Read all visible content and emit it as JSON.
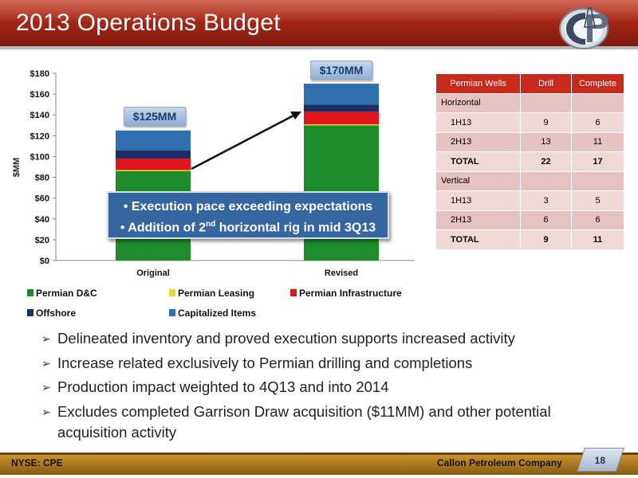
{
  "title": "2013 Operations Budget",
  "chart_data": {
    "type": "bar",
    "stacked": true,
    "categories": [
      "Original",
      "Revised"
    ],
    "ylabel": "$MM",
    "ylim": [
      0,
      180
    ],
    "yticks": [
      "$0",
      "$20",
      "$40",
      "$60",
      "$80",
      "$100",
      "$120",
      "$140",
      "$160",
      "$180"
    ],
    "series": [
      {
        "name": "Permian D&C",
        "color": "#1e8c2a",
        "values": [
          86,
          130
        ]
      },
      {
        "name": "Permian Leasing",
        "color": "#e6d82a",
        "values": [
          1,
          1
        ]
      },
      {
        "name": "Permian Infrastructure",
        "color": "#e0161a",
        "values": [
          11,
          12
        ]
      },
      {
        "name": "Offshore",
        "color": "#1b2f66",
        "values": [
          8,
          7
        ]
      },
      {
        "name": "Capitalized Items",
        "color": "#2e6fb0",
        "values": [
          19,
          20
        ]
      }
    ],
    "totals_labels": [
      "$125MM",
      "$170MM"
    ],
    "legend_position": "bottom",
    "grid": false
  },
  "callout": {
    "line1": "• Execution pace exceeding expectations",
    "line2_pre": "• Addition of 2",
    "line2_sup": "nd",
    "line2_post": " horizontal rig in mid 3Q13"
  },
  "table": {
    "headers": [
      "Permian Wells",
      "Drill",
      "Complete"
    ],
    "rows": [
      {
        "label": "Horizontal",
        "drill": "",
        "complete": "",
        "type": "section"
      },
      {
        "label": "1H13",
        "drill": "9",
        "complete": "6",
        "type": "item"
      },
      {
        "label": "2H13",
        "drill": "13",
        "complete": "11",
        "type": "item"
      },
      {
        "label": "TOTAL",
        "drill": "22",
        "complete": "17",
        "type": "total"
      },
      {
        "label": "Vertical",
        "drill": "",
        "complete": "",
        "type": "section"
      },
      {
        "label": "1H13",
        "drill": "3",
        "complete": "5",
        "type": "item"
      },
      {
        "label": "2H13",
        "drill": "6",
        "complete": "6",
        "type": "item"
      },
      {
        "label": "TOTAL",
        "drill": "9",
        "complete": "11",
        "type": "total"
      }
    ]
  },
  "bullets": [
    "Delineated inventory and proved execution supports increased activity",
    "Increase related exclusively to Permian drilling and completions",
    "Production impact weighted to 4Q13 and into 2014",
    "Excludes completed Garrison Draw acquisition ($11MM) and other potential acquisition activity"
  ],
  "footer": {
    "left": "NYSE: CPE",
    "right": "Callon Petroleum Company",
    "page": "18"
  }
}
